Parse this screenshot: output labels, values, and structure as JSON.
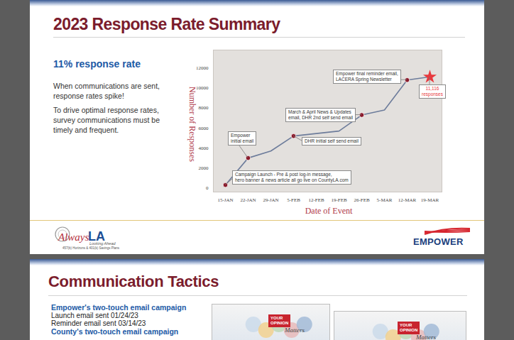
{
  "slides": [
    {
      "title": "2023 Response Rate Summary",
      "headline": "11% response rate",
      "paragraphs": [
        "When communications are sent, response rates spike!",
        "To drive optimal response rates, survey communications must be timely and frequent."
      ],
      "logos": {
        "left": [
          "Always",
          "LA",
          "Looking Ahead",
          "457(b) Horizons & 401(k) Savings Plans"
        ],
        "right": "EMPOWER"
      }
    },
    {
      "title": "Communication Tactics",
      "sections": [
        {
          "heading": "Empower's two-touch email campaign",
          "lines": [
            "Launch email sent 01/24/23",
            "Reminder email sent 03/14/23"
          ]
        },
        {
          "heading": "County's two-touch email campaign"
        }
      ],
      "images": [
        {
          "text": [
            "YOUR",
            "OPINION",
            "Matters"
          ]
        },
        {
          "text": [
            "YOUR",
            "OPINION",
            "Matters"
          ]
        }
      ]
    }
  ],
  "chart_data": {
    "type": "line",
    "x_label": "Date of Event",
    "y_label": "Number of Responses",
    "categories": [
      "15-JAN",
      "22-JAN",
      "29-JAN",
      "5-FEB",
      "12-FEB",
      "19-FEB",
      "26-FEB",
      "5-MAR",
      "12-MAR",
      "19-MAR"
    ],
    "values": [
      300,
      3000,
      3700,
      5200,
      5450,
      5700,
      7300,
      7800,
      10800,
      11116
    ],
    "color": "#6d7c9b",
    "ylim": [
      -400,
      13800
    ],
    "yticks": [
      0,
      2000,
      4000,
      6000,
      8000,
      10000,
      12000
    ],
    "grid": false,
    "annotations": [
      {
        "x": "15-JAN",
        "text": [
          "Campaign Launch - Pre & post log-in message,",
          "hero banner & news article all go live on CountyLA.com"
        ],
        "marker": "circle",
        "color": "#8b1a2b"
      },
      {
        "x": "22-JAN",
        "text": [
          "Empower",
          "initial email"
        ],
        "marker": "circle",
        "color": "#8b1a2b"
      },
      {
        "x": "5-FEB",
        "text": [
          "DHR initial self send email"
        ],
        "marker": "circle",
        "color": "#8b1a2b"
      },
      {
        "x": "26-FEB",
        "text": [
          "March & April News & Updates",
          "email, DHR 2nd self send email"
        ],
        "marker": "circle",
        "color": "#8b1a2b"
      },
      {
        "x": "12-MAR",
        "text": [
          "Empower final reminder email,",
          "LACERA Spring Newsletter"
        ],
        "marker": "circle",
        "color": "#8b1a2b"
      },
      {
        "x": "19-MAR",
        "text": [
          "11,116",
          "responses"
        ],
        "marker": "star",
        "color": "#e8383d"
      }
    ]
  }
}
